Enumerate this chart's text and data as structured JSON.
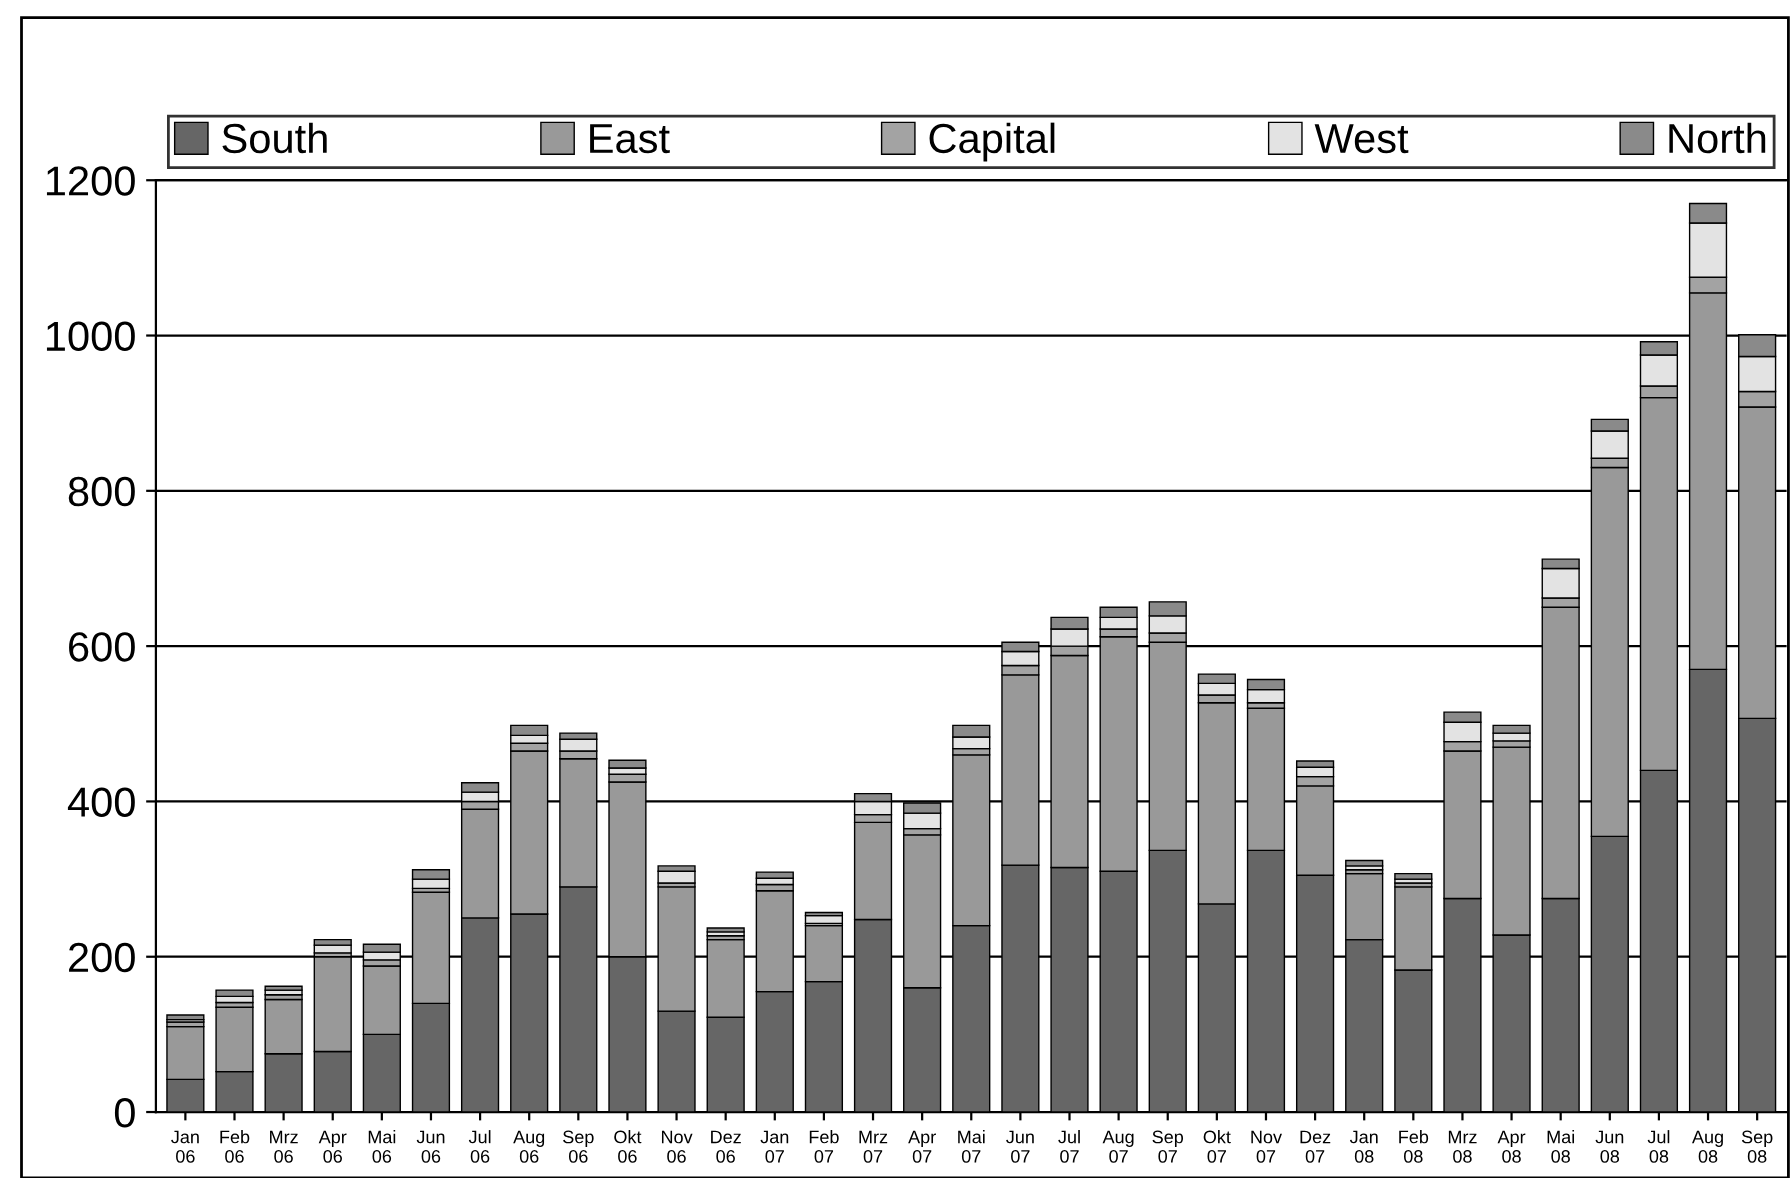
{
  "chart_data": {
    "type": "bar",
    "stacked": true,
    "categories": [
      "Jan\n06",
      "Feb\n06",
      "Mrz\n06",
      "Apr\n06",
      "Mai\n06",
      "Jun\n06",
      "Jul\n06",
      "Aug\n06",
      "Sep\n06",
      "Okt\n06",
      "Nov\n06",
      "Dez\n06",
      "Jan\n07",
      "Feb\n07",
      "Mrz\n07",
      "Apr\n07",
      "Mai\n07",
      "Jun\n07",
      "Jul\n07",
      "Aug\n07",
      "Sep\n07",
      "Okt\n07",
      "Nov\n07",
      "Dez\n07",
      "Jan\n08",
      "Feb\n08",
      "Mrz\n08",
      "Apr\n08",
      "Mai\n08",
      "Jun\n08",
      "Jul\n08",
      "Aug\n08",
      "Sep\n08"
    ],
    "series": [
      {
        "name": "South",
        "color": "#666666",
        "values": [
          42,
          52,
          75,
          78,
          100,
          140,
          250,
          255,
          290,
          200,
          130,
          122,
          155,
          168,
          248,
          160,
          240,
          318,
          315,
          310,
          337,
          268,
          337,
          305,
          222,
          183,
          275,
          228,
          275,
          355,
          440,
          570,
          507
        ]
      },
      {
        "name": "East",
        "color": "#999999",
        "values": [
          68,
          83,
          70,
          122,
          88,
          143,
          140,
          210,
          165,
          225,
          160,
          100,
          130,
          72,
          125,
          197,
          220,
          245,
          273,
          302,
          268,
          259,
          183,
          115,
          85,
          107,
          190,
          242,
          375,
          475,
          480,
          485,
          401
        ]
      },
      {
        "name": "Capital",
        "color": "#a3a3a3",
        "values": [
          6,
          6,
          6,
          5,
          8,
          5,
          10,
          10,
          10,
          10,
          5,
          5,
          8,
          3,
          10,
          8,
          8,
          12,
          12,
          10,
          12,
          10,
          7,
          12,
          5,
          5,
          12,
          8,
          12,
          12,
          15,
          20,
          20
        ]
      },
      {
        "name": "West",
        "color": "#e3e3e3",
        "values": [
          3,
          8,
          6,
          10,
          10,
          12,
          12,
          10,
          15,
          8,
          15,
          5,
          8,
          10,
          17,
          20,
          15,
          18,
          22,
          15,
          22,
          15,
          17,
          12,
          5,
          5,
          25,
          10,
          38,
          35,
          40,
          70,
          45
        ]
      },
      {
        "name": "North",
        "color": "#8a8a8a",
        "values": [
          6,
          8,
          5,
          7,
          10,
          12,
          12,
          13,
          8,
          10,
          7,
          5,
          8,
          4,
          10,
          13,
          15,
          12,
          15,
          13,
          18,
          12,
          13,
          8,
          7,
          7,
          13,
          10,
          12,
          15,
          17,
          25,
          28
        ]
      }
    ],
    "ylim": [
      0,
      1200
    ],
    "yticks": [
      0,
      200,
      400,
      600,
      800,
      1000,
      1200
    ],
    "grid": "y",
    "legend": "top"
  }
}
